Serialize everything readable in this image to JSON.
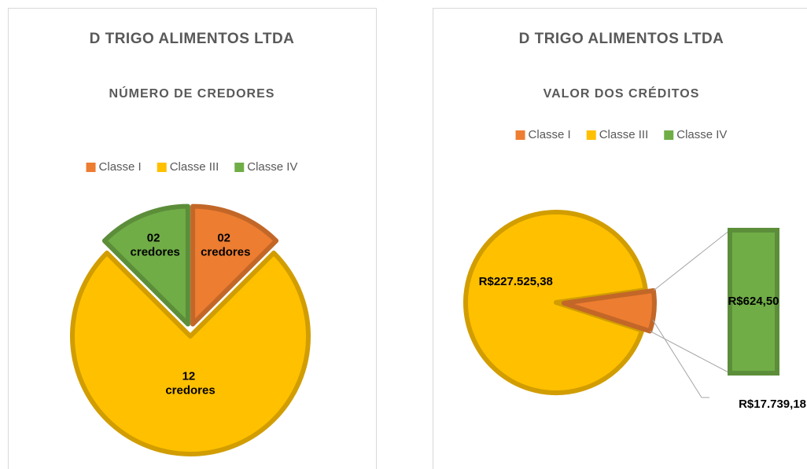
{
  "chart_data": [
    {
      "type": "pie",
      "title": "D TRIGO ALIMENTOS LTDA",
      "subtitle": "NÚMERO DE CREDORES",
      "categories": [
        "Classe I",
        "Classe III",
        "Classe IV"
      ],
      "values": [
        2,
        12,
        2
      ],
      "value_labels": [
        "02 credores",
        "12 credores",
        "02 credores"
      ],
      "colors": [
        "#ed7d31",
        "#ffc000",
        "#70ad47"
      ],
      "legend": "top"
    },
    {
      "type": "bar-of-pie",
      "title": "D TRIGO ALIMENTOS LTDA",
      "subtitle": "VALOR DOS CRÉDITOS",
      "categories": [
        "Classe I",
        "Classe III",
        "Classe IV"
      ],
      "values": [
        17739.18,
        227525.38,
        624.5
      ],
      "value_labels": [
        "R$17.739,18",
        "R$227.525,38",
        "R$624,50"
      ],
      "colors": [
        "#ed7d31",
        "#ffc000",
        "#70ad47"
      ],
      "legend": "top"
    }
  ]
}
